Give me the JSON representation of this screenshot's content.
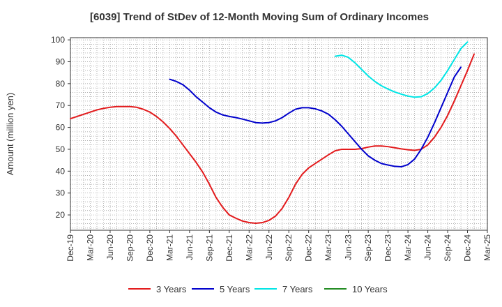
{
  "chart_data": {
    "type": "line",
    "title": "[6039]  Trend of StDev of 12-Month Moving Sum of Ordinary Incomes",
    "xlabel": "",
    "ylabel": "Amount (million yen)",
    "ylim": [
      13,
      101
    ],
    "yticks": [
      20,
      30,
      40,
      50,
      60,
      70,
      80,
      90,
      100
    ],
    "grid": true,
    "legend_position": "bottom",
    "x_start": "Dec-19",
    "x_tick_labels": [
      "Dec-19",
      "Mar-20",
      "Jun-20",
      "Sep-20",
      "Dec-20",
      "Mar-21",
      "Jun-21",
      "Sep-21",
      "Dec-21",
      "Mar-22",
      "Jun-22",
      "Sep-22",
      "Dec-22",
      "Mar-23",
      "Jun-23",
      "Sep-23",
      "Dec-23",
      "Mar-24",
      "Jun-24",
      "Sep-24",
      "Dec-24",
      "Mar-25"
    ],
    "series": [
      {
        "name": "3 Years",
        "color": "#e31a1c",
        "start_index": 0,
        "values": [
          64,
          65,
          66,
          67,
          68,
          68.7,
          69.2,
          69.5,
          69.5,
          69.5,
          69.2,
          68.3,
          67,
          65,
          62.5,
          59.5,
          56,
          52,
          48,
          44,
          39.5,
          34,
          28,
          23.5,
          20,
          18.5,
          17.2,
          16.5,
          16.2,
          16.5,
          17.5,
          19.5,
          23,
          28,
          34,
          38.5,
          41.5,
          43.5,
          45.5,
          47.5,
          49.3,
          50,
          50,
          50,
          50.3,
          51,
          51.5,
          51.5,
          51.2,
          50.7,
          50.2,
          49.8,
          49.5,
          50,
          52,
          55.5,
          60,
          65.5,
          72,
          79,
          86,
          93.5
        ]
      },
      {
        "name": "5 Years",
        "color": "#0000cc",
        "start_index": 15,
        "values": [
          82,
          81,
          79.5,
          77,
          74,
          71.5,
          69,
          67,
          65.7,
          65,
          64.5,
          63.8,
          63,
          62.2,
          62,
          62.2,
          63,
          64.5,
          66.5,
          68.3,
          69,
          69,
          68.5,
          67.5,
          66,
          63.5,
          60.5,
          57,
          53.5,
          50,
          47,
          45,
          43.5,
          42.8,
          42.2,
          42,
          43,
          45.5,
          50,
          55.5,
          62,
          69,
          76,
          83,
          87.5
        ]
      },
      {
        "name": "7 Years",
        "color": "#00e5e5",
        "start_index": 40,
        "values": [
          92.5,
          93,
          92,
          89.5,
          86.5,
          83.5,
          81,
          79,
          77.5,
          76.2,
          75.2,
          74.3,
          73.8,
          74,
          75.5,
          78,
          81.5,
          86,
          91,
          96,
          99
        ]
      },
      {
        "name": "10 Years",
        "color": "#228b22",
        "start_index": 0,
        "values": []
      }
    ]
  }
}
